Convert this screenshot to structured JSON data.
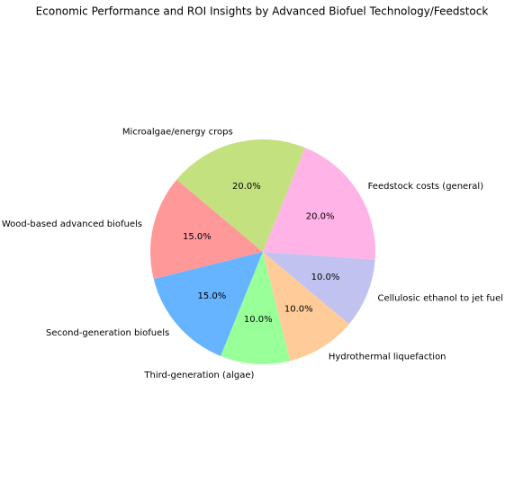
{
  "chart_data": {
    "type": "pie",
    "title": "Economic Performance and ROI Insights by Advanced Biofuel Technology/Feedstock",
    "categories": [
      "Wood-based advanced biofuels",
      "Second-generation biofuels",
      "Third-generation (algae)",
      "Hydrothermal liquefaction",
      "Cellulosic ethanol to jet fuel",
      "Feedstock costs (general)",
      "Microalgae/energy crops"
    ],
    "values": [
      15,
      15,
      10,
      10,
      10,
      20,
      20
    ],
    "value_labels": [
      "15.0%",
      "15.0%",
      "10.0%",
      "10.0%",
      "10.0%",
      "20.0%",
      "20.0%"
    ],
    "colors": [
      "#ff9999",
      "#66b3ff",
      "#99ff99",
      "#ffcc99",
      "#c2c2f0",
      "#ffb3e6",
      "#c4e17f"
    ],
    "start_angle": 140
  }
}
